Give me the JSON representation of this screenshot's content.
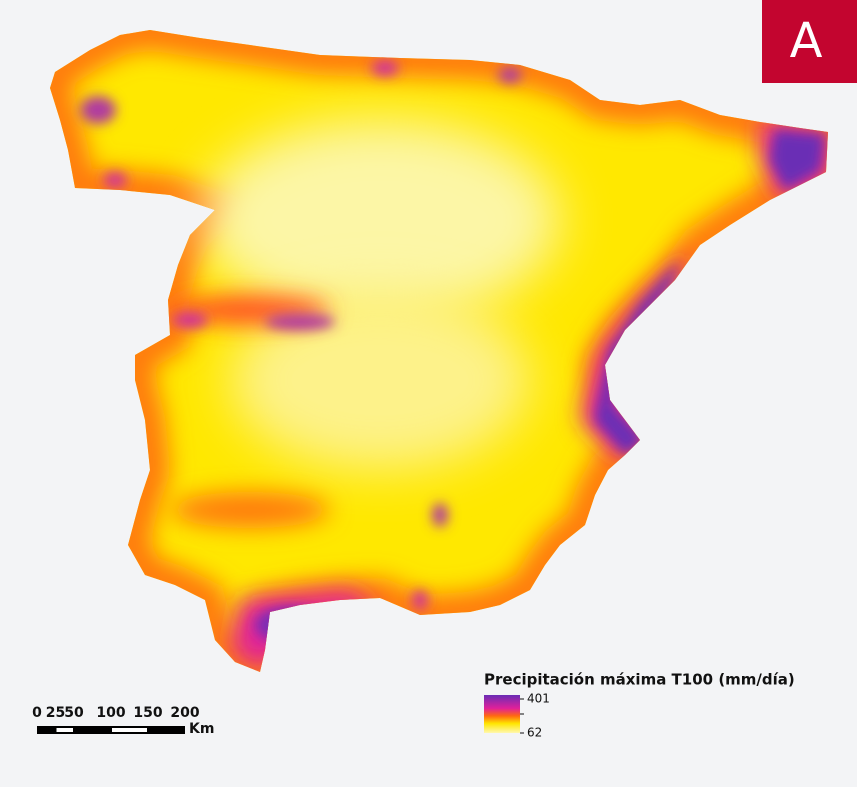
{
  "badge": "A",
  "legend": {
    "title": "Precipitación máxima T100 (mm/día)",
    "max": 401,
    "min": 62
  },
  "scale_bar": {
    "ticks": [
      0,
      25,
      50,
      100,
      150,
      200
    ],
    "unit": "Km"
  }
}
